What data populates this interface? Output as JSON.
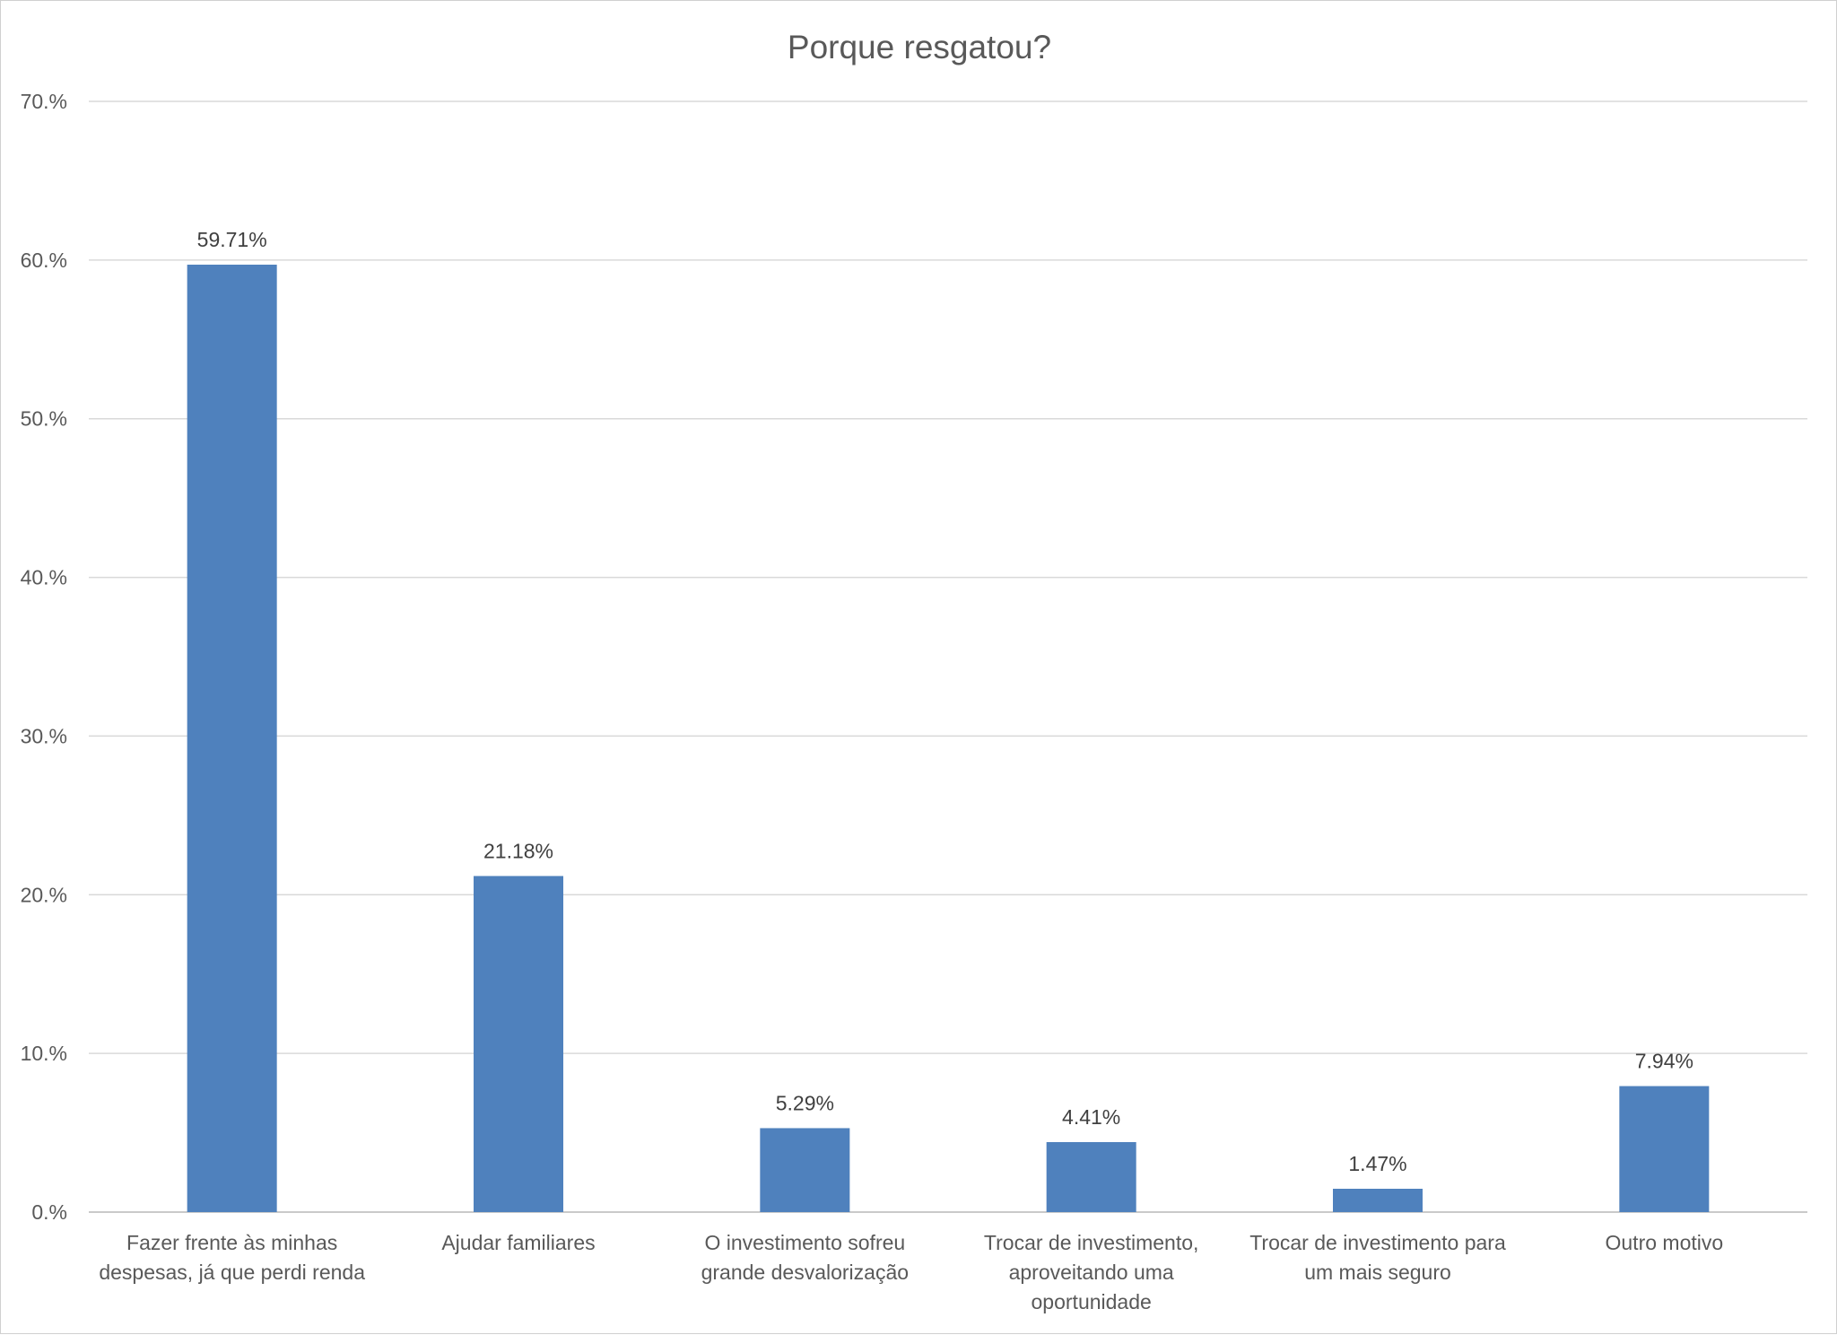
{
  "chart_data": {
    "type": "bar",
    "title": "Porque resgatou?",
    "xlabel": "",
    "ylabel": "",
    "ylim": [
      0,
      70
    ],
    "yticks": [
      0,
      10,
      20,
      30,
      40,
      50,
      60,
      70
    ],
    "ytick_labels": [
      "0.%",
      "10.%",
      "20.%",
      "30.%",
      "40.%",
      "50.%",
      "60.%",
      "70.%"
    ],
    "grid": true,
    "legend": "none",
    "bar_color": "#4f81bd",
    "categories": [
      [
        "Fazer frente às minhas",
        "despesas, já que perdi renda"
      ],
      [
        "Ajudar familiares"
      ],
      [
        "O investimento sofreu",
        "grande desvalorização"
      ],
      [
        "Trocar de investimento,",
        "aproveitando uma",
        "oportunidade"
      ],
      [
        "Trocar de investimento para",
        "um mais seguro"
      ],
      [
        "Outro motivo"
      ]
    ],
    "values": [
      59.71,
      21.18,
      5.29,
      4.41,
      1.47,
      7.94
    ],
    "data_labels": [
      "59.71%",
      "21.18%",
      "5.29%",
      "4.41%",
      "1.47%",
      "7.94%"
    ]
  }
}
